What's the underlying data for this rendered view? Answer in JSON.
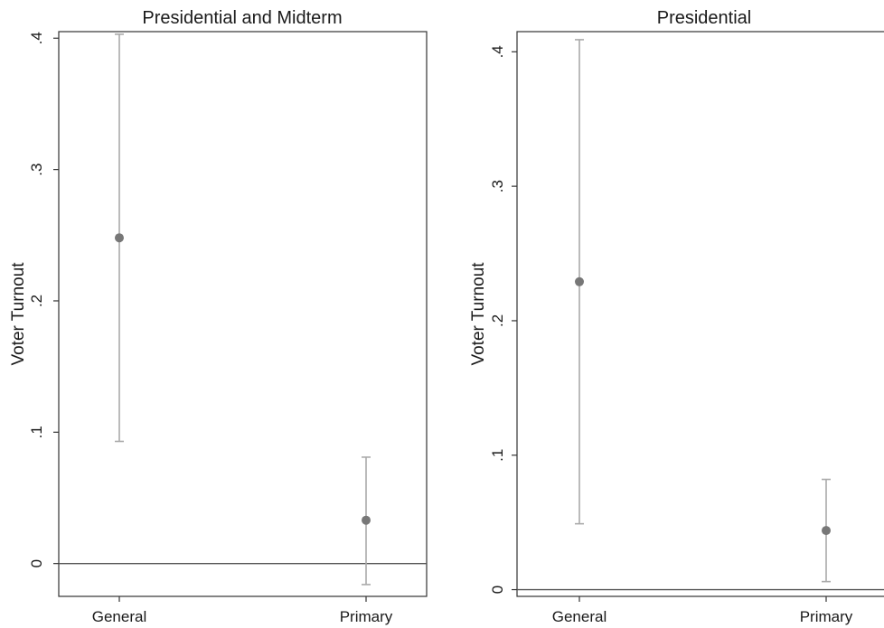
{
  "chart_data": [
    {
      "type": "scatter",
      "title": "Presidential and Midterm",
      "ylabel": "Voter Turnout",
      "xlabel": "",
      "categories": [
        "General",
        "Primary"
      ],
      "ylim": [
        -0.025,
        0.405
      ],
      "yticks": [
        0,
        0.1,
        0.2,
        0.3,
        0.4
      ],
      "ytick_labels": [
        "0",
        ".1",
        ".2",
        ".3",
        ".4"
      ],
      "points": [
        {
          "category": "General",
          "estimate": 0.248,
          "ci_low": 0.093,
          "ci_high": 0.403
        },
        {
          "category": "Primary",
          "estimate": 0.033,
          "ci_low": -0.016,
          "ci_high": 0.081
        }
      ],
      "reference_line": 0,
      "grid": false,
      "colors": {
        "point": "#777777",
        "error_bar": "#aaaaaa",
        "reference_line": "#555555",
        "frame": "#333333"
      }
    },
    {
      "type": "scatter",
      "title": "Presidential",
      "ylabel": "Voter Turnout",
      "xlabel": "",
      "categories": [
        "General",
        "Primary"
      ],
      "ylim": [
        -0.005,
        0.415
      ],
      "yticks": [
        0,
        0.1,
        0.2,
        0.3,
        0.4
      ],
      "ytick_labels": [
        "0",
        ".1",
        ".2",
        ".3",
        ".4"
      ],
      "points": [
        {
          "category": "General",
          "estimate": 0.229,
          "ci_low": 0.049,
          "ci_high": 0.409
        },
        {
          "category": "Primary",
          "estimate": 0.044,
          "ci_low": 0.006,
          "ci_high": 0.082
        }
      ],
      "reference_line": 0,
      "grid": false,
      "colors": {
        "point": "#777777",
        "error_bar": "#aaaaaa",
        "reference_line": "#555555",
        "frame": "#333333"
      }
    }
  ]
}
